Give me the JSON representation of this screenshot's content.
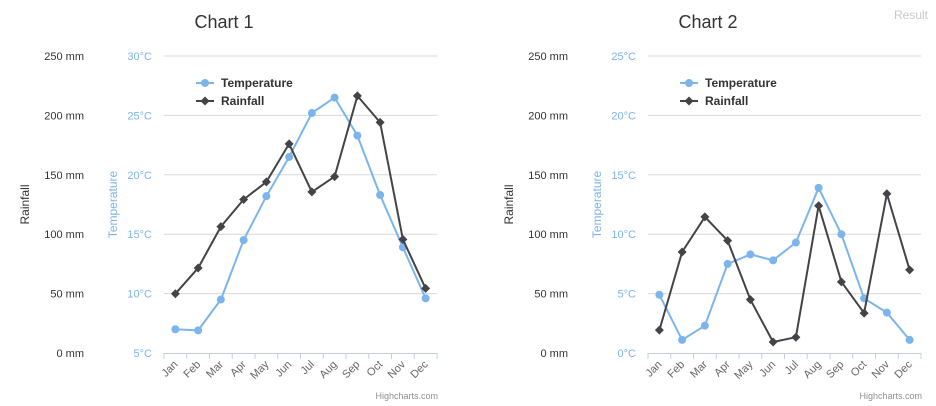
{
  "header": {
    "result_label": "Result"
  },
  "colors": {
    "temperature": "#7cb5ec",
    "rainfall": "#434348",
    "grid": "#d8d8d8",
    "text": "#333333"
  },
  "chart_data": [
    {
      "type": "line",
      "title": "Chart 1",
      "categories": [
        "Jan",
        "Feb",
        "Mar",
        "Apr",
        "May",
        "Jun",
        "Jul",
        "Aug",
        "Sep",
        "Oct",
        "Nov",
        "Dec"
      ],
      "series": [
        {
          "name": "Temperature",
          "axis": "temperature",
          "values": [
            7.0,
            6.9,
            9.5,
            14.5,
            18.2,
            21.5,
            25.2,
            26.5,
            23.3,
            18.3,
            13.9,
            9.6
          ]
        },
        {
          "name": "Rainfall",
          "axis": "rainfall",
          "values": [
            49.9,
            71.5,
            106.4,
            129.2,
            144.0,
            176.0,
            135.6,
            148.5,
            216.4,
            194.1,
            95.6,
            54.4
          ]
        }
      ],
      "axes": {
        "rainfall": {
          "title": "Rainfall",
          "min": 0,
          "max": 250,
          "ticks": [
            "0 mm",
            "50 mm",
            "100 mm",
            "150 mm",
            "200 mm",
            "250 mm"
          ]
        },
        "temperature": {
          "title": "Temperature",
          "min": 5,
          "max": 30,
          "ticks": [
            "5°C",
            "10°C",
            "15°C",
            "20°C",
            "25°C",
            "30°C"
          ]
        }
      },
      "legend": {
        "position": "top-left",
        "items": [
          "Temperature",
          "Rainfall"
        ]
      },
      "grid": true,
      "credits": "Highcharts.com"
    },
    {
      "type": "line",
      "title": "Chart 2",
      "categories": [
        "Jan",
        "Feb",
        "Mar",
        "Apr",
        "May",
        "Jun",
        "Jul",
        "Aug",
        "Sep",
        "Oct",
        "Nov",
        "Dec"
      ],
      "series": [
        {
          "name": "Temperature",
          "axis": "temperature",
          "values": [
            4.9,
            1.1,
            2.3,
            7.5,
            8.3,
            7.8,
            9.3,
            13.9,
            10.0,
            4.6,
            3.4,
            1.1
          ]
        },
        {
          "name": "Rainfall",
          "axis": "rainfall",
          "values": [
            19.3,
            85.0,
            114.6,
            94.6,
            44.9,
            9.3,
            13.3,
            124.0,
            59.9,
            33.6,
            134.0,
            70.0
          ]
        }
      ],
      "axes": {
        "rainfall": {
          "title": "Rainfall",
          "min": 0,
          "max": 250,
          "ticks": [
            "0 mm",
            "50 mm",
            "100 mm",
            "150 mm",
            "200 mm",
            "250 mm"
          ]
        },
        "temperature": {
          "title": "Temperature",
          "min": 0,
          "max": 25,
          "ticks": [
            "0°C",
            "5°C",
            "10°C",
            "15°C",
            "20°C",
            "25°C"
          ]
        }
      },
      "legend": {
        "position": "top-left",
        "items": [
          "Temperature",
          "Rainfall"
        ]
      },
      "grid": true,
      "credits": "Highcharts.com"
    }
  ]
}
